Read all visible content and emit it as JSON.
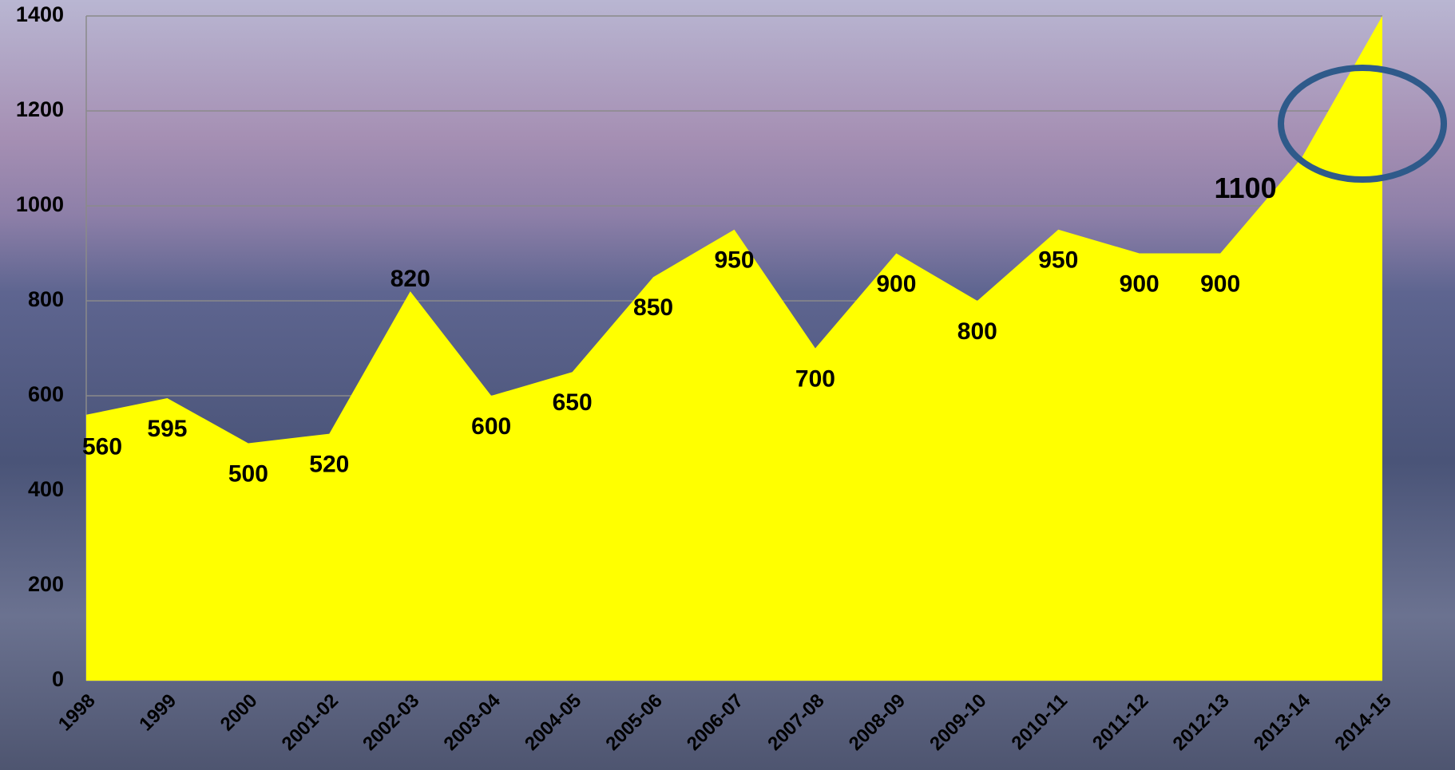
{
  "chart_data": {
    "type": "area",
    "categories": [
      "1998",
      "1999",
      "2000",
      "2001-02",
      "2002-03",
      "2003-04",
      "2004-05",
      "2005-06",
      "2006-07",
      "2007-08",
      "2008-09",
      "2009-10",
      "2010-11",
      "2011-12",
      "2012-13",
      "2013-14",
      "2014-15"
    ],
    "series": [
      {
        "color": "#ffff00",
        "values": [
          560,
          595,
          500,
          520,
          820,
          600,
          650,
          850,
          950,
          700,
          900,
          800,
          950,
          900,
          900,
          1100,
          1400
        ]
      }
    ],
    "ylim": [
      0,
      1400
    ],
    "yticks": [
      0,
      200,
      400,
      600,
      800,
      1000,
      1200,
      1400
    ],
    "grid": true
  }
}
